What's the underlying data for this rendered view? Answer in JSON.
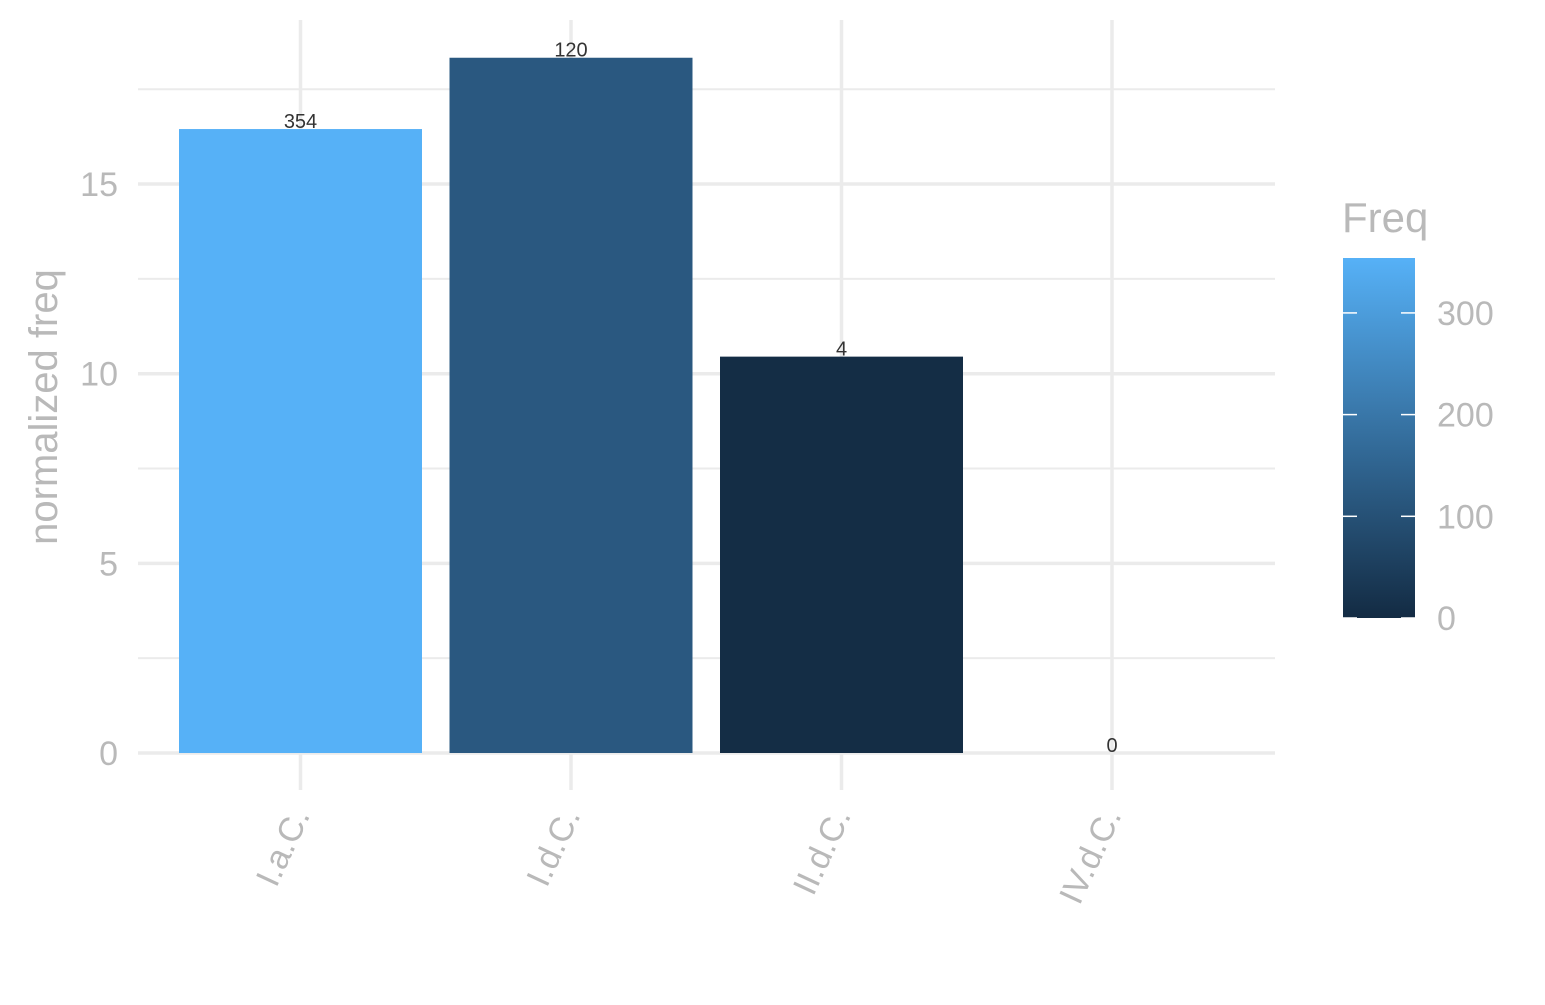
{
  "chart_data": {
    "type": "bar",
    "categories": [
      "I.a.C.",
      "I.d.C.",
      "II.d.C.",
      "IV.d.C."
    ],
    "values": [
      16.45,
      18.33,
      10.45,
      0
    ],
    "labels": [
      "354",
      "120",
      "4",
      "0"
    ],
    "freq": [
      354,
      120,
      4,
      0
    ],
    "xlabel": "",
    "ylabel": "normalized freq",
    "ylim": [
      0,
      18.6
    ],
    "yticks": [
      0,
      5,
      10,
      15
    ],
    "grid": true,
    "legend": {
      "title": "Freq",
      "placement": "right",
      "type": "colorbar",
      "range": [
        0,
        354
      ],
      "ticks": [
        0,
        100,
        200,
        300
      ],
      "color_low": "#132b43",
      "color_high": "#56b1f7"
    }
  }
}
